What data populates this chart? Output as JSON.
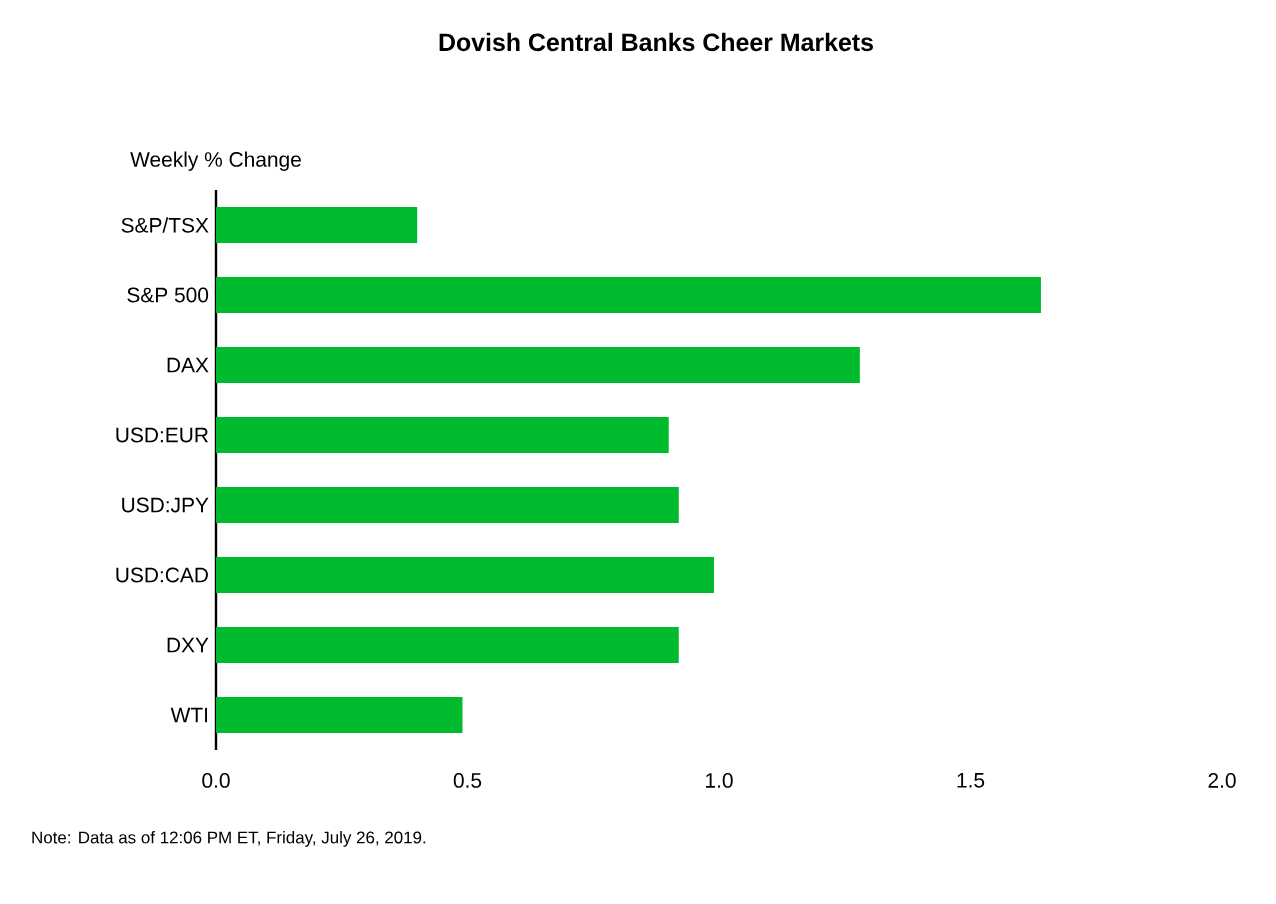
{
  "chart_data": {
    "type": "bar",
    "orientation": "horizontal",
    "title": "Dovish Central Banks Cheer Markets",
    "ylabel": "Weekly % Change",
    "categories": [
      "S&P/TSX",
      "S&P 500",
      "DAX",
      "USD:EUR",
      "USD:JPY",
      "USD:CAD",
      "DXY",
      "WTI"
    ],
    "values": [
      0.4,
      1.64,
      1.28,
      0.9,
      0.92,
      0.99,
      0.92,
      0.49
    ],
    "color": "#00bb2d",
    "xlim": [
      0,
      2
    ],
    "xticks": [
      {
        "value": 0,
        "label": "0.0"
      },
      {
        "value": 0.5,
        "label": "0.5"
      },
      {
        "value": 1,
        "label": "1.0"
      },
      {
        "value": 1.5,
        "label": "1.5"
      },
      {
        "value": 2,
        "label": "2.0"
      }
    ],
    "grid": false,
    "annotations": [
      "Note: Data as of 12:06 PM ET, Friday, July 26, 2019."
    ]
  }
}
